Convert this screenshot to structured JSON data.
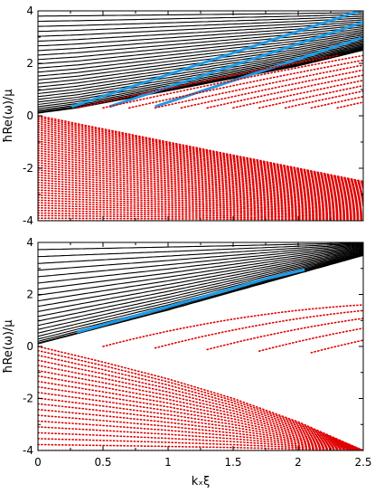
{
  "chart_data": [
    {
      "type": "line",
      "panel": "top",
      "xlim": [
        0,
        2.5
      ],
      "ylim": [
        -4,
        4
      ],
      "xticks": [],
      "yticks": [
        "4",
        "2",
        "0",
        "-2",
        "-4"
      ],
      "xlabel": "",
      "ylabel": "ħRe(ω)/μ",
      "grid": false,
      "legend": "none",
      "colors": {
        "black": "#000000",
        "blue": "#1e9be6",
        "red": "#e00000"
      },
      "series": [
        {
          "color": "black",
          "style": "solid",
          "family": "upper-bulk-band",
          "edge": [
            [
              0.0,
              0.1
            ],
            [
              0.3,
              0.3
            ],
            [
              1.0,
              0.95
            ],
            [
              2.0,
              1.9
            ],
            [
              2.5,
              2.5
            ]
          ],
          "top": 4.0,
          "count": 30
        },
        {
          "color": "blue",
          "style": "solid",
          "family": "edge-modes",
          "starts_x": [
            0.26,
            0.55,
            0.9
          ],
          "slope": 1.65
        },
        {
          "color": "red",
          "style": "dotted",
          "family": "lower-bulk-band",
          "edge": [
            [
              0.0,
              0.0
            ],
            [
              2.5,
              -2.5
            ]
          ],
          "bottom": -4.0,
          "count": 45
        },
        {
          "color": "red",
          "style": "dotted",
          "family": "gap-lines",
          "x_at_zero": [
            0.3,
            0.5,
            0.7,
            0.9,
            1.1,
            1.3,
            1.5,
            1.7,
            1.9,
            2.1,
            2.3
          ]
        }
      ]
    },
    {
      "type": "line",
      "panel": "bottom",
      "xlim": [
        0,
        2.5
      ],
      "ylim": [
        -4,
        4
      ],
      "xticks": [
        "0",
        "0.5",
        "1",
        "1.5",
        "2",
        "2.5"
      ],
      "yticks": [
        "4",
        "2",
        "0",
        "-2",
        "-4"
      ],
      "xlabel": "kₓξ",
      "ylabel": "ħRe(ω)/μ",
      "grid": false,
      "legend": "none",
      "colors": {
        "black": "#000000",
        "blue": "#1e9be6",
        "red": "#e00000"
      },
      "series": [
        {
          "color": "black",
          "style": "solid",
          "family": "upper-bulk-band",
          "edge": [
            [
              0.0,
              0.1
            ],
            [
              0.5,
              0.75
            ],
            [
              1.0,
              1.4
            ],
            [
              1.5,
              2.1
            ],
            [
              2.0,
              2.8
            ],
            [
              2.5,
              3.5
            ]
          ],
          "top": 4.0,
          "count": 22
        },
        {
          "color": "blue",
          "style": "solid",
          "family": "edge-mode",
          "points": [
            [
              0.3,
              0.55
            ],
            [
              0.8,
              1.25
            ],
            [
              1.3,
              1.95
            ],
            [
              1.75,
              2.6
            ],
            [
              2.05,
              2.95
            ]
          ]
        },
        {
          "color": "red",
          "style": "dotted",
          "family": "lower-bulk-band",
          "edge": [
            [
              0.0,
              0.0
            ],
            [
              0.5,
              -0.6
            ],
            [
              1.0,
              -1.25
            ],
            [
              1.5,
              -2.0
            ],
            [
              2.0,
              -2.9
            ],
            [
              2.5,
              -4.0
            ]
          ],
          "bottom": -4.0,
          "count": 20
        },
        {
          "color": "red",
          "style": "dotted",
          "family": "gap-curves",
          "x_at_zero": [
            0.5,
            0.9,
            1.3,
            1.7,
            2.1
          ]
        }
      ]
    }
  ]
}
